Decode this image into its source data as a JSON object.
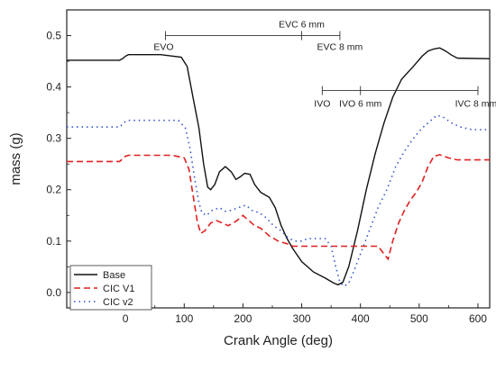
{
  "chart_data": {
    "type": "line",
    "title": "",
    "xlabel": "Crank Angle (deg)",
    "ylabel": "mass (g)",
    "xlim": [
      -100,
      620
    ],
    "ylim": [
      -0.03,
      0.55
    ],
    "xticks": [
      0,
      100,
      200,
      300,
      400,
      500,
      600
    ],
    "yticks": [
      0.0,
      0.1,
      0.2,
      0.3,
      0.4,
      0.5
    ],
    "grid": false,
    "legend_position": "bottom-left",
    "series": [
      {
        "name": "Base",
        "color": "#111111",
        "dash": "solid",
        "points": [
          [
            -100,
            0.452
          ],
          [
            -10,
            0.452
          ],
          [
            -5,
            0.455
          ],
          [
            0,
            0.46
          ],
          [
            5,
            0.463
          ],
          [
            60,
            0.463
          ],
          [
            95,
            0.458
          ],
          [
            105,
            0.44
          ],
          [
            115,
            0.38
          ],
          [
            125,
            0.32
          ],
          [
            133,
            0.25
          ],
          [
            140,
            0.205
          ],
          [
            145,
            0.2
          ],
          [
            152,
            0.21
          ],
          [
            160,
            0.235
          ],
          [
            170,
            0.245
          ],
          [
            180,
            0.235
          ],
          [
            188,
            0.22
          ],
          [
            195,
            0.225
          ],
          [
            203,
            0.232
          ],
          [
            212,
            0.23
          ],
          [
            220,
            0.21
          ],
          [
            230,
            0.195
          ],
          [
            245,
            0.185
          ],
          [
            255,
            0.165
          ],
          [
            265,
            0.13
          ],
          [
            275,
            0.105
          ],
          [
            285,
            0.085
          ],
          [
            300,
            0.06
          ],
          [
            320,
            0.04
          ],
          [
            340,
            0.028
          ],
          [
            355,
            0.018
          ],
          [
            362,
            0.015
          ],
          [
            370,
            0.02
          ],
          [
            380,
            0.05
          ],
          [
            395,
            0.12
          ],
          [
            410,
            0.2
          ],
          [
            425,
            0.27
          ],
          [
            440,
            0.33
          ],
          [
            455,
            0.38
          ],
          [
            470,
            0.415
          ],
          [
            490,
            0.44
          ],
          [
            505,
            0.46
          ],
          [
            515,
            0.47
          ],
          [
            525,
            0.474
          ],
          [
            535,
            0.476
          ],
          [
            545,
            0.47
          ],
          [
            555,
            0.462
          ],
          [
            565,
            0.456
          ],
          [
            620,
            0.455
          ]
        ]
      },
      {
        "name": "CIC V1",
        "color": "#e02020",
        "dash": "7,4",
        "points": [
          [
            -100,
            0.255
          ],
          [
            -10,
            0.255
          ],
          [
            0,
            0.265
          ],
          [
            5,
            0.267
          ],
          [
            80,
            0.267
          ],
          [
            100,
            0.262
          ],
          [
            108,
            0.24
          ],
          [
            115,
            0.19
          ],
          [
            122,
            0.14
          ],
          [
            128,
            0.115
          ],
          [
            135,
            0.12
          ],
          [
            145,
            0.135
          ],
          [
            155,
            0.14
          ],
          [
            165,
            0.135
          ],
          [
            175,
            0.13
          ],
          [
            190,
            0.14
          ],
          [
            200,
            0.15
          ],
          [
            210,
            0.14
          ],
          [
            220,
            0.13
          ],
          [
            230,
            0.125
          ],
          [
            245,
            0.11
          ],
          [
            260,
            0.1
          ],
          [
            275,
            0.095
          ],
          [
            285,
            0.09
          ],
          [
            430,
            0.09
          ],
          [
            440,
            0.075
          ],
          [
            447,
            0.065
          ],
          [
            455,
            0.1
          ],
          [
            465,
            0.135
          ],
          [
            475,
            0.16
          ],
          [
            485,
            0.18
          ],
          [
            495,
            0.195
          ],
          [
            505,
            0.215
          ],
          [
            515,
            0.245
          ],
          [
            525,
            0.265
          ],
          [
            535,
            0.268
          ],
          [
            550,
            0.262
          ],
          [
            565,
            0.258
          ],
          [
            620,
            0.258
          ]
        ]
      },
      {
        "name": "CIC v2",
        "color": "#3355cc",
        "dash": "1.5,4",
        "points": [
          [
            -100,
            0.322
          ],
          [
            -10,
            0.322
          ],
          [
            0,
            0.333
          ],
          [
            5,
            0.335
          ],
          [
            90,
            0.335
          ],
          [
            102,
            0.32
          ],
          [
            110,
            0.28
          ],
          [
            118,
            0.22
          ],
          [
            125,
            0.175
          ],
          [
            130,
            0.155
          ],
          [
            138,
            0.15
          ],
          [
            148,
            0.16
          ],
          [
            160,
            0.165
          ],
          [
            170,
            0.158
          ],
          [
            180,
            0.16
          ],
          [
            192,
            0.165
          ],
          [
            205,
            0.17
          ],
          [
            215,
            0.16
          ],
          [
            228,
            0.155
          ],
          [
            240,
            0.145
          ],
          [
            252,
            0.13
          ],
          [
            265,
            0.12
          ],
          [
            278,
            0.105
          ],
          [
            290,
            0.1
          ],
          [
            300,
            0.1
          ],
          [
            310,
            0.105
          ],
          [
            340,
            0.105
          ],
          [
            350,
            0.09
          ],
          [
            358,
            0.05
          ],
          [
            365,
            0.02
          ],
          [
            372,
            0.012
          ],
          [
            380,
            0.018
          ],
          [
            390,
            0.045
          ],
          [
            400,
            0.075
          ],
          [
            415,
            0.12
          ],
          [
            430,
            0.165
          ],
          [
            445,
            0.2
          ],
          [
            460,
            0.245
          ],
          [
            475,
            0.275
          ],
          [
            490,
            0.3
          ],
          [
            505,
            0.32
          ],
          [
            520,
            0.335
          ],
          [
            530,
            0.345
          ],
          [
            540,
            0.342
          ],
          [
            555,
            0.33
          ],
          [
            570,
            0.322
          ],
          [
            590,
            0.317
          ],
          [
            620,
            0.317
          ]
        ]
      }
    ],
    "valve_events": {
      "exhaust": {
        "bar_y": 0.5,
        "left_x": 68,
        "right_x": 365,
        "markers": [
          {
            "label": "EVO",
            "x": 68
          },
          {
            "label": "EVC 6 mm",
            "x": 300
          },
          {
            "label": "EVC 8 mm",
            "x": 365
          }
        ]
      },
      "intake": {
        "bar_y": 0.393,
        "left_x": 335,
        "right_x": 600,
        "markers": [
          {
            "label": "IVO",
            "x": 335
          },
          {
            "label": "IVO 6 mm",
            "x": 400
          },
          {
            "label": "IVC 8 mm",
            "x": 600
          }
        ]
      }
    }
  }
}
